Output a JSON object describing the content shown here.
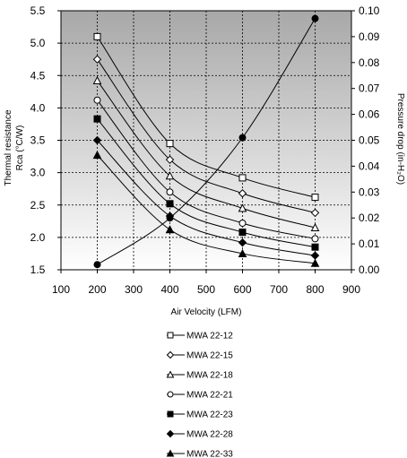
{
  "chart_data": {
    "type": "line",
    "xlabel": "Air Velocity (LFM)",
    "ylabel_left": [
      "Thermal resistance",
      "Rca (°C/W)"
    ],
    "ylabel_right": "Pressure drop (in-H₂O)",
    "xlim": [
      100,
      900
    ],
    "ylim_left": [
      1.5,
      5.5
    ],
    "ylim_right": [
      0.0,
      0.1
    ],
    "x_ticks": [
      "100",
      "200",
      "300",
      "400",
      "500",
      "600",
      "700",
      "800",
      "900"
    ],
    "y_left_ticks": [
      "1.5",
      "2.0",
      "2.5",
      "3.0",
      "3.5",
      "4.0",
      "4.5",
      "5.0",
      "5.5"
    ],
    "y_right_ticks": [
      "0.00",
      "0.01",
      "0.02",
      "0.03",
      "0.04",
      "0.05",
      "0.06",
      "0.07",
      "0.08",
      "0.09",
      "0.10"
    ],
    "grid": true,
    "legend_position": "bottom",
    "series": [
      {
        "name": "MWA 22-12",
        "marker": "square-open",
        "axis": "left",
        "x": [
          200,
          400,
          600,
          800
        ],
        "y": [
          5.1,
          3.45,
          2.92,
          2.62
        ]
      },
      {
        "name": "MWA 22-15",
        "marker": "diamond-open",
        "axis": "left",
        "x": [
          200,
          400,
          600,
          800
        ],
        "y": [
          4.75,
          3.2,
          2.68,
          2.38
        ]
      },
      {
        "name": "MWA 22-18",
        "marker": "triangle-open",
        "axis": "left",
        "x": [
          200,
          400,
          600,
          800
        ],
        "y": [
          4.42,
          2.95,
          2.45,
          2.15
        ]
      },
      {
        "name": "MWA 22-21",
        "marker": "circle-open",
        "axis": "left",
        "x": [
          200,
          400,
          600,
          800
        ],
        "y": [
          4.12,
          2.7,
          2.22,
          1.98
        ]
      },
      {
        "name": "MWA 22-23",
        "marker": "square-filled",
        "axis": "left",
        "x": [
          200,
          400,
          600,
          800
        ],
        "y": [
          3.83,
          2.52,
          2.08,
          1.85
        ]
      },
      {
        "name": "MWA 22-28",
        "marker": "diamond-filled",
        "axis": "left",
        "x": [
          200,
          400,
          600,
          800
        ],
        "y": [
          3.5,
          2.33,
          1.92,
          1.72
        ]
      },
      {
        "name": "MWA 22-33",
        "marker": "triangle-filled",
        "axis": "left",
        "x": [
          200,
          400,
          600,
          800
        ],
        "y": [
          3.27,
          2.12,
          1.75,
          1.6
        ]
      },
      {
        "name": "",
        "marker": "circle-filled",
        "axis": "right",
        "x": [
          200,
          400,
          600,
          800
        ],
        "y": [
          0.002,
          0.02,
          0.051,
          0.097
        ]
      }
    ],
    "colors": {
      "plot_top": "#ababab",
      "plot_bottom": "#ffffff",
      "line": "#000000",
      "grid": "#000000"
    }
  }
}
